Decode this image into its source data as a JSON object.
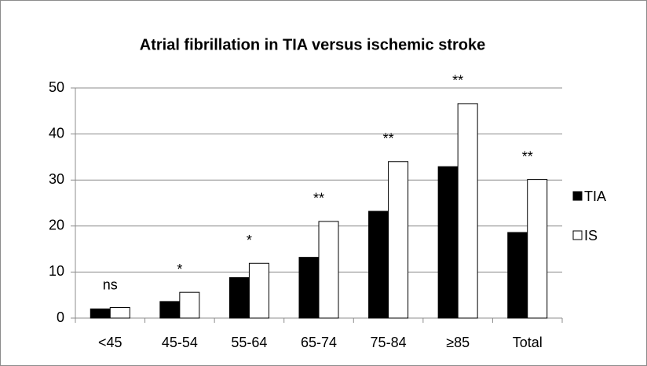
{
  "chart_data": {
    "type": "bar",
    "title": "Atrial fibrillation in TIA versus ischemic stroke",
    "categories": [
      "<45",
      "45-54",
      "55-64",
      "65-74",
      "75-84",
      "≥85",
      "Total"
    ],
    "series": [
      {
        "name": "TIA",
        "color": "#000000",
        "values": [
          2.0,
          3.6,
          8.8,
          13.2,
          23.2,
          32.9,
          18.6
        ]
      },
      {
        "name": "IS",
        "color": "#ffffff",
        "values": [
          2.3,
          5.6,
          11.9,
          21.0,
          34.0,
          46.6,
          30.1
        ]
      }
    ],
    "annotations": [
      "ns",
      "*",
      "*",
      "**",
      "**",
      "**",
      "**"
    ],
    "ylim": [
      0,
      50
    ],
    "yticks": [
      0,
      10,
      20,
      30,
      40,
      50
    ],
    "grid": true,
    "legend": "right"
  }
}
